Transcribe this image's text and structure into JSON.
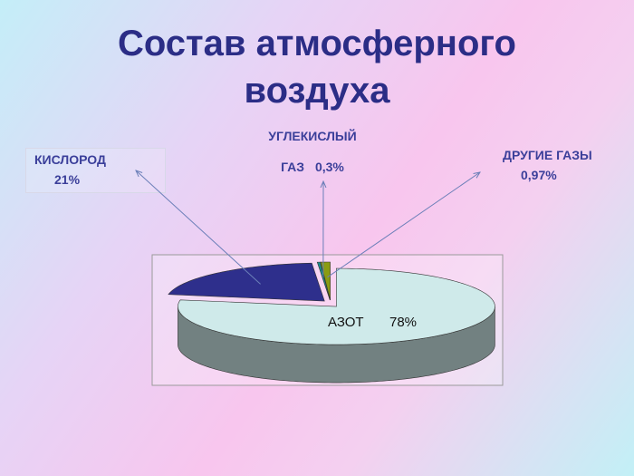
{
  "chart_data": {
    "type": "pie3d",
    "title": "Состав атмосферного воздуха",
    "categories": [
      "КИСЛОРОД",
      "УГЛЕКИСЛЫЙ ГАЗ",
      "ДРУГИЕ ГАЗЫ",
      "АЗОТ"
    ],
    "values": [
      21,
      0.3,
      0.97,
      78
    ],
    "value_labels": [
      "21%",
      "0,3%",
      "0,97%",
      "78%"
    ],
    "colors": [
      "#2e2f8c",
      "#1b8c8c",
      "#8a9c12",
      "#cfeaea"
    ]
  }
}
